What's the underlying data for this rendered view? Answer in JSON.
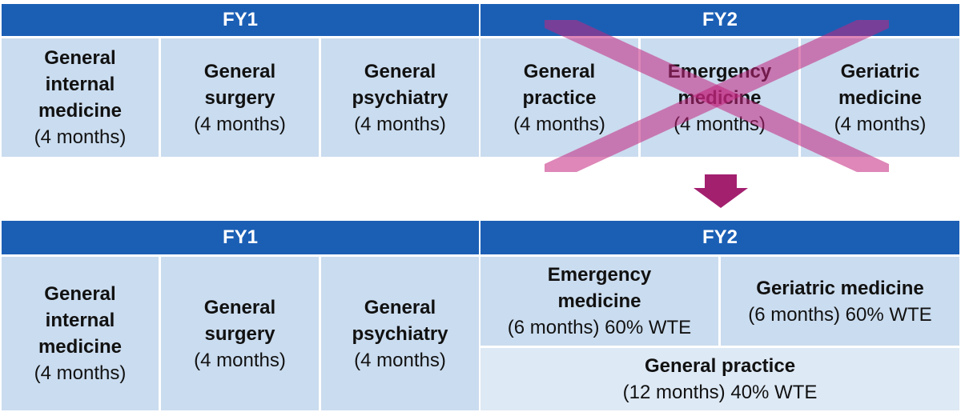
{
  "top": {
    "headers": [
      "FY1",
      "FY2"
    ],
    "cells": [
      {
        "name": "General internal medicine",
        "duration": "(4 months)"
      },
      {
        "name": "General surgery",
        "duration": "(4 months)"
      },
      {
        "name": "General psychiatry",
        "duration": "(4 months)"
      },
      {
        "name": "General practice",
        "duration": "(4 months)"
      },
      {
        "name": "Emergency medicine",
        "duration": "(4 months)"
      },
      {
        "name": "Geriatric medicine",
        "duration": "(4 months)"
      }
    ]
  },
  "bottom": {
    "headers": [
      "FY1",
      "FY2"
    ],
    "cells": [
      {
        "name": "General internal medicine",
        "duration": "(4 months)"
      },
      {
        "name": "General surgery",
        "duration": "(4 months)"
      },
      {
        "name": "General psychiatry",
        "duration": "(4 months)"
      },
      {
        "name": "Emergency medicine",
        "duration": "(6 months) 60% WTE"
      },
      {
        "name": "Geriatric medicine",
        "duration": "(6 months) 60% WTE"
      },
      {
        "name": "General practice",
        "duration": "(12 months) 40% WTE"
      }
    ]
  }
}
